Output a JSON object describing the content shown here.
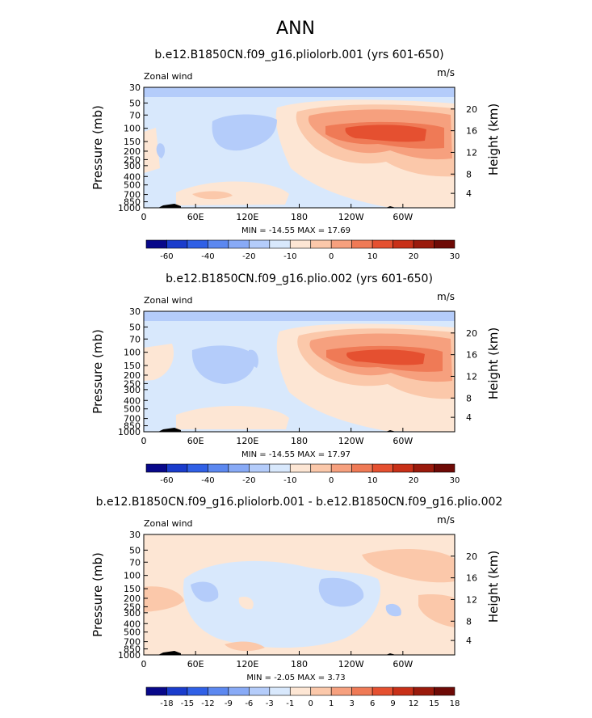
{
  "figure": {
    "title": "ANN"
  },
  "chart_data": [
    {
      "type": "heatmap",
      "title": "b.e12.B1850CN.f09_g16.pliolorb.001 (yrs 601-650)",
      "left_label": "Zonal wind",
      "right_label": "m/s",
      "ylabel": "Pressure (mb)",
      "ylabel_right": "Height (km)",
      "x_ticks": [
        "0",
        "60E",
        "120E",
        "180",
        "120W",
        "60W"
      ],
      "y_ticks": [
        "30",
        "50",
        "70",
        "100",
        "150",
        "200",
        "250",
        "300",
        "400",
        "500",
        "700",
        "850",
        "1000"
      ],
      "y_ticks_right": [
        "20",
        "16",
        "12",
        "8",
        "4"
      ],
      "stats": {
        "min": "-14.55",
        "max": "17.69"
      },
      "colorbar_labels": [
        "-60",
        "-40",
        "-20",
        "-10",
        "0",
        "10",
        "20",
        "30"
      ],
      "colors": [
        "#08088a",
        "#1a3ccc",
        "#3060e6",
        "#5c88f0",
        "#88aaf6",
        "#b4ccfa",
        "#d8e8fc",
        "#fde6d4",
        "#fbc8aa",
        "#f6a07e",
        "#ef7a56",
        "#e55030",
        "#c83018",
        "#9a1a0c",
        "#6e0a06"
      ]
    },
    {
      "type": "heatmap",
      "title": "b.e12.B1850CN.f09_g16.plio.002 (yrs 601-650)",
      "left_label": "Zonal wind",
      "right_label": "m/s",
      "ylabel": "Pressure (mb)",
      "ylabel_right": "Height (km)",
      "x_ticks": [
        "0",
        "60E",
        "120E",
        "180",
        "120W",
        "60W"
      ],
      "y_ticks": [
        "30",
        "50",
        "70",
        "100",
        "150",
        "200",
        "250",
        "300",
        "400",
        "500",
        "700",
        "850",
        "1000"
      ],
      "y_ticks_right": [
        "20",
        "16",
        "12",
        "8",
        "4"
      ],
      "stats": {
        "min": "-14.55",
        "max": "17.97"
      },
      "colorbar_labels": [
        "-60",
        "-40",
        "-20",
        "-10",
        "0",
        "10",
        "20",
        "30"
      ],
      "colors": [
        "#08088a",
        "#1a3ccc",
        "#3060e6",
        "#5c88f0",
        "#88aaf6",
        "#b4ccfa",
        "#d8e8fc",
        "#fde6d4",
        "#fbc8aa",
        "#f6a07e",
        "#ef7a56",
        "#e55030",
        "#c83018",
        "#9a1a0c",
        "#6e0a06"
      ]
    },
    {
      "type": "heatmap",
      "title": "b.e12.B1850CN.f09_g16.pliolorb.001 - b.e12.B1850CN.f09_g16.plio.002",
      "left_label": "Zonal wind",
      "right_label": "m/s",
      "ylabel": "Pressure (mb)",
      "ylabel_right": "Height (km)",
      "x_ticks": [
        "0",
        "60E",
        "120E",
        "180",
        "120W",
        "60W"
      ],
      "y_ticks": [
        "30",
        "50",
        "70",
        "100",
        "150",
        "200",
        "250",
        "300",
        "400",
        "500",
        "700",
        "850",
        "1000"
      ],
      "y_ticks_right": [
        "20",
        "16",
        "12",
        "8",
        "4"
      ],
      "stats": {
        "min": "-2.05",
        "max": "3.73"
      },
      "colorbar_labels": [
        "-18",
        "-15",
        "-12",
        "-9",
        "-6",
        "-3",
        "-1",
        "0",
        "1",
        "3",
        "6",
        "9",
        "12",
        "15",
        "18"
      ],
      "colors": [
        "#08088a",
        "#1a3ccc",
        "#3060e6",
        "#5c88f0",
        "#88aaf6",
        "#b4ccfa",
        "#d8e8fc",
        "#fde6d4",
        "#fbc8aa",
        "#f6a07e",
        "#ef7a56",
        "#e55030",
        "#c83018",
        "#9a1a0c",
        "#6e0a06"
      ]
    }
  ]
}
